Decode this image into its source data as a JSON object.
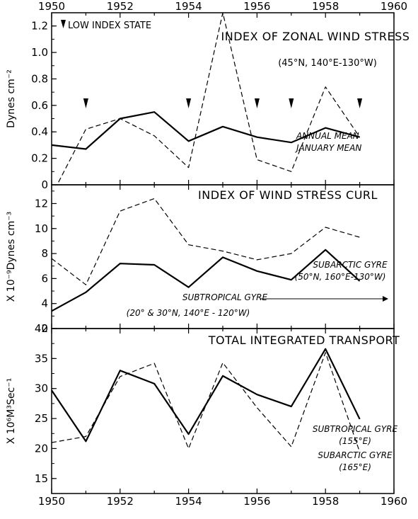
{
  "chart_data": [
    {
      "type": "line",
      "title": "INDEX OF ZONAL WIND STRESS",
      "subtitle": "(45°N, 140°E-130°W)",
      "ylabel": "Dynes cm⁻²",
      "legend_note": "LOW INDEX STATE",
      "xlim": [
        1950,
        1960
      ],
      "ylim": [
        0,
        1.3
      ],
      "x_ticks": [
        "1950",
        "1952",
        "1954",
        "1956",
        "1958",
        "1960"
      ],
      "y_ticks": [
        "0",
        "0.2",
        "0.4",
        "0.6",
        "0.8",
        "1.0",
        "1.2"
      ],
      "low_index_years": [
        1951,
        1954,
        1956,
        1957,
        1959
      ],
      "series": [
        {
          "name": "ANNUAL MEAN",
          "style": "solid",
          "x": [
            1950,
            1951,
            1952,
            1953,
            1954,
            1955,
            1956,
            1957,
            1958,
            1959
          ],
          "y": [
            0.3,
            0.27,
            0.5,
            0.55,
            0.33,
            0.44,
            0.36,
            0.32,
            0.43,
            0.36
          ]
        },
        {
          "name": "JANUARY MEAN",
          "style": "dashed",
          "x": [
            1950.2,
            1951,
            1952,
            1953,
            1954,
            1955,
            1956,
            1957,
            1958,
            1959
          ],
          "y": [
            0.02,
            0.42,
            0.5,
            0.37,
            0.13,
            1.3,
            0.19,
            0.1,
            0.74,
            0.36
          ]
        }
      ]
    },
    {
      "type": "line",
      "title": "INDEX OF WIND STRESS CURL",
      "ylabel": "X 10⁻⁹Dynes cm⁻³",
      "xlim": [
        1950,
        1960
      ],
      "ylim": [
        2,
        13.5
      ],
      "y_ticks": [
        "2",
        "4",
        "6",
        "8",
        "10",
        "12"
      ],
      "series": [
        {
          "name": "SUBARCTIC GYRE",
          "detail": "(50°N, 160°E-130°W)",
          "style": "dashed",
          "x": [
            1950,
            1951,
            1952,
            1953,
            1954,
            1955,
            1956,
            1957,
            1958,
            1959
          ],
          "y": [
            7.6,
            5.5,
            11.4,
            12.4,
            8.7,
            8.2,
            7.5,
            8.0,
            10.1,
            9.3
          ]
        },
        {
          "name": "SUBTROPICAL GYRE",
          "detail": "(20° & 30°N, 140°E - 120°W)",
          "style": "solid",
          "x": [
            1950,
            1951,
            1952,
            1953,
            1954,
            1955,
            1956,
            1957,
            1958,
            1959
          ],
          "y": [
            3.4,
            4.9,
            7.2,
            7.1,
            5.3,
            7.7,
            6.6,
            5.9,
            8.3,
            5.8
          ]
        }
      ]
    },
    {
      "type": "line",
      "title": "TOTAL INTEGRATED TRANSPORT",
      "ylabel": "X 10⁶M³Sec⁻¹",
      "xlim": [
        1950,
        1960
      ],
      "ylim": [
        12.5,
        40
      ],
      "x_ticks": [
        "1950",
        "1952",
        "1954",
        "1956",
        "1958",
        "1960"
      ],
      "y_ticks": [
        "15",
        "20",
        "25",
        "30",
        "35",
        "40"
      ],
      "series": [
        {
          "name": "SUBTROPICAL GYRE",
          "detail": "(155°E)",
          "style": "solid",
          "x": [
            1950,
            1951,
            1952,
            1953,
            1954,
            1955,
            1956,
            1957,
            1958,
            1959
          ],
          "y": [
            29.7,
            21.2,
            33.0,
            30.8,
            22.4,
            32.1,
            29.0,
            27.0,
            36.6,
            24.9
          ]
        },
        {
          "name": "SUBARCTIC GYRE",
          "detail": "(165°E)",
          "style": "dashed",
          "x": [
            1950,
            1951,
            1952,
            1953,
            1954,
            1955,
            1956,
            1957,
            1958,
            1959
          ],
          "y": [
            21.0,
            22.0,
            32.0,
            34.2,
            20.0,
            34.3,
            26.8,
            20.3,
            36.0,
            19.4
          ]
        }
      ]
    }
  ]
}
